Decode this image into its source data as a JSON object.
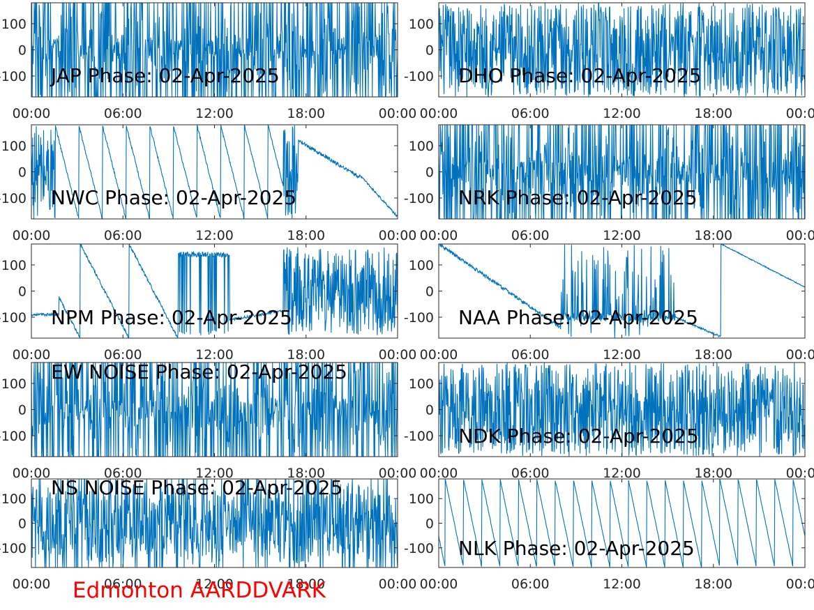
{
  "footer": "Edmonton AARDDVARK",
  "colors": {
    "trace": "#0072bd",
    "axis": "#262626",
    "footer": "#ff0000"
  },
  "chart_data": [
    {
      "type": "line",
      "title": "JAP Phase: 02-Apr-2025",
      "x_ticks": [
        "00:00",
        "06:00",
        "12:00",
        "18:00",
        "00:00"
      ],
      "y_ticks": [
        "100",
        "0",
        "-100"
      ],
      "ylim": [
        -180,
        180
      ],
      "style": "noise-dense"
    },
    {
      "type": "line",
      "title": "DHO Phase: 02-Apr-2025",
      "x_ticks": [
        "00:00",
        "06:00",
        "12:00",
        "18:00",
        "00:00"
      ],
      "y_ticks": [
        "100",
        "0",
        "-100"
      ],
      "ylim": [
        -180,
        180
      ],
      "style": "noise-fast"
    },
    {
      "type": "line",
      "title": "NWC Phase: 02-Apr-2025",
      "x_ticks": [
        "00:00",
        "06:00",
        "12:00",
        "18:00",
        "00:00"
      ],
      "y_ticks": [
        "100",
        "0",
        "-100"
      ],
      "ylim": [
        -180,
        180
      ],
      "style": "sawtooth-nwc"
    },
    {
      "type": "line",
      "title": "NRK Phase: 02-Apr-2025",
      "x_ticks": [
        "00:00",
        "06:00",
        "12:00",
        "18:00",
        "00:00"
      ],
      "y_ticks": [
        "100",
        "0",
        "-100"
      ],
      "ylim": [
        -180,
        180
      ],
      "style": "noise-dense"
    },
    {
      "type": "line",
      "title": "NPM Phase: 02-Apr-2025",
      "x_ticks": [
        "00:00",
        "06:00",
        "12:00",
        "18:00",
        "00:00"
      ],
      "y_ticks": [
        "100",
        "0",
        "-100"
      ],
      "ylim": [
        -180,
        180
      ],
      "style": "sawtooth-npm"
    },
    {
      "type": "line",
      "title": "NAA Phase: 02-Apr-2025",
      "x_ticks": [
        "00:00",
        "06:00",
        "12:00",
        "18:00",
        "00:00"
      ],
      "y_ticks": [
        "100",
        "0",
        "-100"
      ],
      "ylim": [
        -180,
        180
      ],
      "style": "sawtooth-naa"
    },
    {
      "type": "line",
      "title": "EW NOISE Phase: 02-Apr-2025",
      "x_ticks": [
        "00:00",
        "06:00",
        "12:00",
        "18:00",
        "00:00"
      ],
      "y_ticks": [
        "100",
        "0",
        "-100"
      ],
      "ylim": [
        -180,
        180
      ],
      "style": "noise-dense"
    },
    {
      "type": "line",
      "title": "NDK Phase: 02-Apr-2025",
      "x_ticks": [
        "00:00",
        "06:00",
        "12:00",
        "18:00",
        "00:00"
      ],
      "y_ticks": [
        "100",
        "0",
        "-100"
      ],
      "ylim": [
        -180,
        180
      ],
      "style": "noise-fast"
    },
    {
      "type": "line",
      "title": "NS NOISE Phase: 02-Apr-2025",
      "x_ticks": [
        "00:00",
        "06:00",
        "12:00",
        "18:00",
        "00:00"
      ],
      "y_ticks": [
        "100",
        "0",
        "-100"
      ],
      "ylim": [
        -180,
        180
      ],
      "style": "noise-medium"
    },
    {
      "type": "line",
      "title": "NLK Phase: 02-Apr-2025",
      "x_ticks": [
        "00:00",
        "06:00",
        "12:00",
        "18:00",
        "00:00"
      ],
      "y_ticks": [
        "100",
        "0",
        "-100"
      ],
      "ylim": [
        -180,
        180
      ],
      "style": "sawtooth-nlk"
    }
  ]
}
